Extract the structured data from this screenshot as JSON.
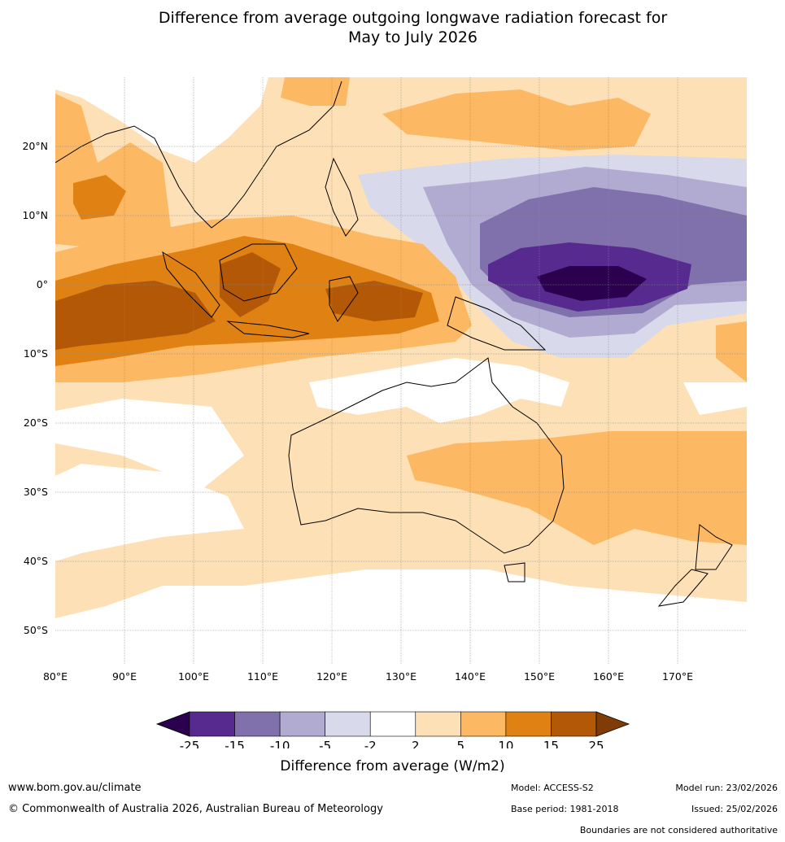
{
  "title": {
    "line1": "Difference from average outgoing longwave radiation forecast for",
    "line2": "May to July 2026"
  },
  "map": {
    "lon_range": [
      80,
      180
    ],
    "lat_range": [
      -55,
      30
    ],
    "lon_ticks": [
      "80°E",
      "90°E",
      "100°E",
      "110°E",
      "120°E",
      "130°E",
      "140°E",
      "150°E",
      "160°E",
      "170°E"
    ],
    "lat_ticks": [
      "20°N",
      "10°N",
      "0°",
      "10°S",
      "20°S",
      "30°S",
      "40°S",
      "50°S"
    ]
  },
  "colorbar": {
    "labels": [
      "-25",
      "-15",
      "-10",
      "-5",
      "-2",
      "2",
      "5",
      "10",
      "15",
      "25"
    ],
    "colors": [
      "#2a004f",
      "#562a8f",
      "#8071ac",
      "#b2abd1",
      "#d8d9eb",
      "#ffffff",
      "#fee0b6",
      "#fdb863",
      "#e08213",
      "#b35807",
      "#7f3b08"
    ],
    "title": "Difference from average (W/m2)"
  },
  "footer": {
    "url": "www.bom.gov.au/climate",
    "copyright": "© Commonwealth of Australia 2026, Australian Bureau of Meteorology",
    "model": "Model: ACCESS-S2",
    "model_run": "Model run: 23/02/2026",
    "base_period": "Base period: 1981-2018",
    "issued": "Issued: 25/02/2026",
    "disclaimer": "Boundaries are not considered authoritative"
  }
}
